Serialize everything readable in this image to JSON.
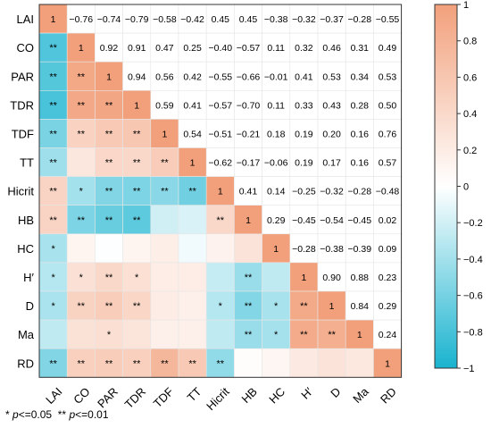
{
  "chart_data": {
    "type": "heatmap",
    "variables": [
      "LAI",
      "CO",
      "PAR",
      "TDR",
      "TDF",
      "TT",
      "Hicrit",
      "HB",
      "HC",
      "H′",
      "D",
      "Ma",
      "RD"
    ],
    "matrix": [
      [
        1,
        -0.76,
        -0.74,
        -0.79,
        -0.58,
        -0.42,
        0.45,
        0.45,
        -0.38,
        -0.32,
        -0.37,
        -0.28,
        -0.55
      ],
      [
        -0.76,
        1,
        0.92,
        0.91,
        0.47,
        0.25,
        -0.4,
        -0.57,
        0.11,
        0.32,
        0.46,
        0.31,
        0.49
      ],
      [
        -0.74,
        0.92,
        1,
        0.94,
        0.56,
        0.42,
        -0.55,
        -0.66,
        -0.01,
        0.41,
        0.53,
        0.34,
        0.53
      ],
      [
        -0.79,
        0.91,
        0.94,
        1,
        0.59,
        0.41,
        -0.57,
        -0.7,
        0.11,
        0.33,
        0.43,
        0.28,
        0.5
      ],
      [
        -0.58,
        0.47,
        0.56,
        0.59,
        1,
        0.54,
        -0.51,
        -0.21,
        0.18,
        0.19,
        0.2,
        0.16,
        0.76
      ],
      [
        -0.42,
        0.25,
        0.42,
        0.41,
        0.54,
        1,
        -0.62,
        -0.17,
        -0.06,
        0.19,
        0.17,
        0.16,
        0.57
      ],
      [
        0.45,
        -0.4,
        -0.55,
        -0.57,
        -0.51,
        -0.62,
        1,
        0.41,
        0.14,
        -0.25,
        -0.32,
        -0.28,
        -0.48
      ],
      [
        0.45,
        -0.57,
        -0.66,
        -0.7,
        -0.21,
        -0.17,
        0.41,
        1,
        0.29,
        -0.45,
        -0.54,
        -0.45,
        0.02
      ],
      [
        -0.38,
        0.11,
        -0.01,
        0.11,
        0.18,
        -0.06,
        0.14,
        0.29,
        1,
        -0.28,
        -0.38,
        -0.39,
        0.09
      ],
      [
        -0.32,
        0.32,
        0.41,
        0.33,
        0.19,
        0.19,
        -0.25,
        -0.45,
        -0.28,
        1,
        0.9,
        0.88,
        0.23
      ],
      [
        -0.37,
        0.46,
        0.53,
        0.43,
        0.2,
        0.17,
        -0.32,
        -0.54,
        -0.38,
        0.9,
        1,
        0.84,
        0.29
      ],
      [
        -0.28,
        0.31,
        0.34,
        0.28,
        0.16,
        0.16,
        -0.28,
        -0.45,
        -0.39,
        0.88,
        0.84,
        1,
        0.24
      ],
      [
        -0.55,
        0.49,
        0.53,
        0.5,
        0.76,
        0.57,
        -0.48,
        0.02,
        0.09,
        0.23,
        0.29,
        0.24,
        1
      ]
    ],
    "upper_labels": [
      [
        "1",
        "−0.76",
        "−0.74",
        "−0.79",
        "−0.58",
        "−0.42",
        "0.45",
        "0.45",
        "−0.38",
        "−0.32",
        "−0.37",
        "−0.28",
        "−0.55"
      ],
      [
        "",
        "1",
        "0.92",
        "0.91",
        "0.47",
        "0.25",
        "−0.40",
        "−0.57",
        "0.11",
        "0.32",
        "0.46",
        "0.31",
        "0.49"
      ],
      [
        "",
        "",
        "1",
        "0.94",
        "0.56",
        "0.42",
        "−0.55",
        "−0.66",
        "−0.01",
        "0.41",
        "0.53",
        "0.34",
        "0.53"
      ],
      [
        "",
        "",
        "",
        "1",
        "0.59",
        "0.41",
        "−0.57",
        "−0.70",
        "0.11",
        "0.33",
        "0.43",
        "0.28",
        "0.50"
      ],
      [
        "",
        "",
        "",
        "",
        "1",
        "0.54",
        "−0.51",
        "−0.21",
        "0.18",
        "0.19",
        "0.20",
        "0.16",
        "0.76"
      ],
      [
        "",
        "",
        "",
        "",
        "",
        "1",
        "−0.62",
        "−0.17",
        "−0.06",
        "0.19",
        "0.17",
        "0.16",
        "0.57"
      ],
      [
        "",
        "",
        "",
        "",
        "",
        "",
        "1",
        "0.41",
        "0.14",
        "−0.25",
        "−0.32",
        "−0.28",
        "−0.48"
      ],
      [
        "",
        "",
        "",
        "",
        "",
        "",
        "",
        "1",
        "0.29",
        "−0.45",
        "−0.54",
        "−0.45",
        "0.02"
      ],
      [
        "",
        "",
        "",
        "",
        "",
        "",
        "",
        "",
        "1",
        "−0.28",
        "−0.38",
        "−0.39",
        "0.09"
      ],
      [
        "",
        "",
        "",
        "",
        "",
        "",
        "",
        "",
        "",
        "1",
        "0.90",
        "0.88",
        "0.23"
      ],
      [
        "",
        "",
        "",
        "",
        "",
        "",
        "",
        "",
        "",
        "",
        "1",
        "0.84",
        "0.29"
      ],
      [
        "",
        "",
        "",
        "",
        "",
        "",
        "",
        "",
        "",
        "",
        "",
        "1",
        "0.24"
      ],
      [
        "",
        "",
        "",
        "",
        "",
        "",
        "",
        "",
        "",
        "",
        "",
        "",
        "1"
      ]
    ],
    "significance": [
      [
        "",
        "",
        "",
        "",
        "",
        "",
        "",
        "",
        "",
        "",
        "",
        "",
        ""
      ],
      [
        "**",
        "",
        "",
        "",
        "",
        "",
        "",
        "",
        "",
        "",
        "",
        "",
        ""
      ],
      [
        "**",
        "**",
        "",
        "",
        "",
        "",
        "",
        "",
        "",
        "",
        "",
        "",
        ""
      ],
      [
        "**",
        "**",
        "**",
        "",
        "",
        "",
        "",
        "",
        "",
        "",
        "",
        "",
        ""
      ],
      [
        "**",
        "**",
        "**",
        "**",
        "",
        "",
        "",
        "",
        "",
        "",
        "",
        "",
        ""
      ],
      [
        "**",
        "",
        "**",
        "**",
        "**",
        "",
        "",
        "",
        "",
        "",
        "",
        "",
        ""
      ],
      [
        "**",
        "*",
        "**",
        "**",
        "**",
        "**",
        "",
        "",
        "",
        "",
        "",
        "",
        ""
      ],
      [
        "**",
        "**",
        "**",
        "**",
        "",
        "",
        "**",
        "",
        "",
        "",
        "",
        "",
        ""
      ],
      [
        "*",
        "",
        "",
        "",
        "",
        "",
        "",
        "",
        "",
        "",
        "",
        "",
        ""
      ],
      [
        "*",
        "*",
        "**",
        "*",
        "",
        "",
        "",
        "**",
        "",
        "",
        "",
        "",
        ""
      ],
      [
        "*",
        "**",
        "**",
        "**",
        "",
        "",
        "*",
        "**",
        "*",
        "**",
        "",
        "",
        ""
      ],
      [
        "",
        "",
        "*",
        "",
        "",
        "",
        "",
        "**",
        "*",
        "**",
        "**",
        "",
        ""
      ],
      [
        "**",
        "**",
        "**",
        "**",
        "**",
        "**",
        "**",
        "",
        "",
        "",
        "",
        "",
        ""
      ]
    ],
    "colorbar": {
      "range": [
        -1,
        1
      ],
      "ticks": [
        "1",
        "0.8",
        "0.6",
        "0.4",
        "0.2",
        "0",
        "−0.2",
        "−0.4",
        "−0.6",
        "−0.8",
        "−1"
      ],
      "tick_values": [
        1,
        0.8,
        0.6,
        0.4,
        0.2,
        0,
        -0.2,
        -0.4,
        -0.6,
        -0.8,
        -1
      ],
      "negative_color": "#19b3cf",
      "neutral_color": "#ffffff",
      "positive_color": "#f2a07b"
    },
    "footnote": {
      "single_star": "*",
      "single_text": "<=0.05",
      "double_star": "**",
      "double_text": "<=0.01",
      "p_symbol": "p"
    }
  }
}
